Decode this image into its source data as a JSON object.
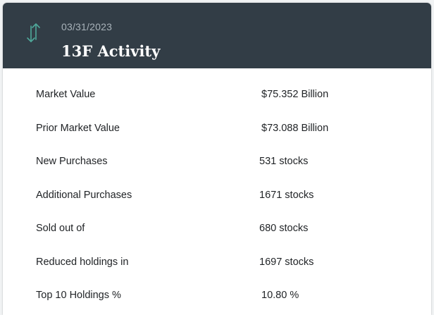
{
  "header": {
    "icon": "up-down-arrows-icon",
    "date": "03/31/2023",
    "title": "13F Activity",
    "accent_color": "#4fa89a",
    "background_color": "#323d46"
  },
  "rows": [
    {
      "label": "Market Value",
      "value": "$75.352 Billion"
    },
    {
      "label": "Prior Market Value",
      "value": "$73.088 Billion"
    },
    {
      "label": "New Purchases",
      "value": "531 stocks"
    },
    {
      "label": "Additional Purchases",
      "value": "1671 stocks"
    },
    {
      "label": "Sold out of",
      "value": "680 stocks"
    },
    {
      "label": "Reduced holdings in",
      "value": "1697 stocks"
    },
    {
      "label": "Top 10 Holdings %",
      "value": "10.80 %"
    }
  ]
}
